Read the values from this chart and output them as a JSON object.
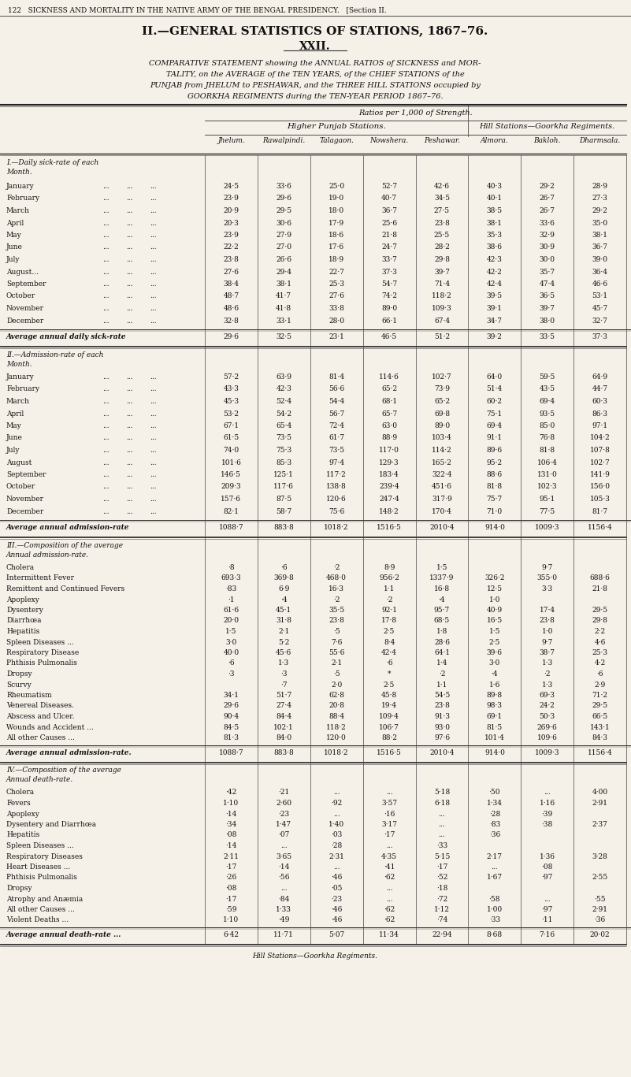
{
  "bg_color": "#f5f0e8",
  "header_line": "122   SICKNESS AND MORTALITY IN THE NATIVE ARMY OF THE BENGAL PRESIDENCY.   [Section II.",
  "title1": "II.—GENERAL STATISTICS OF STATIONS, 1867–76.",
  "title2": "XXII.",
  "subtitle_lines": [
    "COMPARATIVE STATEMENT showing the ANNUAL RATIOS of SICKNESS and MOR-",
    "TALITY, on the AVERAGE of the TEN YEARS, of the CHIEF STATIONS of the",
    "PUNJAB from JHELUM to PESHAWAR, and the THREE HILL STATIONS occupied by",
    "GOORKHA REGIMENTS during the TEN-YEAR PERIOD 1867–76."
  ],
  "ratios_label": "Ratios per 1,000 of Strength.",
  "group1_label": "Higher Punjab Stations.",
  "group2_label": "Hill Stations—Goorkha Regiments.",
  "columns": [
    "Jhelum.",
    "Rawalpindi.",
    "Talagaon.",
    "Nowshera.",
    "Peshawar.",
    "Almora.",
    "Bakloh.",
    "Dharmsala."
  ],
  "section1_title_lines": [
    "I.—Daily sick-rate of each",
    "Month."
  ],
  "section1_rows": [
    [
      "January",
      "24·5",
      "33·6",
      "25·0",
      "52·7",
      "42·6",
      "40·3",
      "29·2",
      "28·9"
    ],
    [
      "February",
      "23·9",
      "29·6",
      "19·0",
      "40·7",
      "34·5",
      "40·1",
      "26·7",
      "27·3"
    ],
    [
      "March",
      "20·9",
      "29·5",
      "18·0",
      "36·7",
      "27·5",
      "38·5",
      "26·7",
      "29·2"
    ],
    [
      "April",
      "20·3",
      "30·6",
      "17·9",
      "25·6",
      "23·8",
      "38·1",
      "33·6",
      "35·0"
    ],
    [
      "May",
      "23·9",
      "27·9",
      "18·6",
      "21·8",
      "25·5",
      "35·3",
      "32·9",
      "38·1"
    ],
    [
      "June",
      "22·2",
      "27·0",
      "17·6",
      "24·7",
      "28·2",
      "38·6",
      "30·9",
      "36·7"
    ],
    [
      "July",
      "23·8",
      "26·6",
      "18·9",
      "33·7",
      "29·8",
      "42·3",
      "30·0",
      "39·0"
    ],
    [
      "August...",
      "27·6",
      "29·4",
      "22·7",
      "37·3",
      "39·7",
      "42·2",
      "35·7",
      "36·4"
    ],
    [
      "September",
      "38·4",
      "38·1",
      "25·3",
      "54·7",
      "71·4",
      "42·4",
      "47·4",
      "46·6"
    ],
    [
      "October",
      "48·7",
      "41·7",
      "27·6",
      "74·2",
      "118·2",
      "39·5",
      "36·5",
      "53·1"
    ],
    [
      "November",
      "48·6",
      "41·8",
      "33·8",
      "89·0",
      "109·3",
      "39·1",
      "39·7",
      "45·7"
    ],
    [
      "December",
      "32·8",
      "33·1",
      "28·0",
      "66·1",
      "67·4",
      "34·7",
      "38·0",
      "32·7"
    ]
  ],
  "section1_avg": [
    "Average annual daily sick-rate",
    "29·6",
    "32·5",
    "23·1",
    "46·5",
    "51·2",
    "39·2",
    "33·5",
    "37·3"
  ],
  "section2_title_lines": [
    "II.—Admission-rate of each",
    "Month."
  ],
  "section2_rows": [
    [
      "January",
      "57·2",
      "63·9",
      "81·4",
      "114·6",
      "102·7",
      "64·0",
      "59·5",
      "64·9"
    ],
    [
      "February",
      "43·3",
      "42·3",
      "56·6",
      "65·2",
      "73·9",
      "51·4",
      "43·5",
      "44·7"
    ],
    [
      "March",
      "45·3",
      "52·4",
      "54·4",
      "68·1",
      "65·2",
      "60·2",
      "69·4",
      "60·3"
    ],
    [
      "April",
      "53·2",
      "54·2",
      "56·7",
      "65·7",
      "69·8",
      "75·1",
      "93·5",
      "86·3"
    ],
    [
      "May",
      "67·1",
      "65·4",
      "72·4",
      "63·0",
      "89·0",
      "69·4",
      "85·0",
      "97·1"
    ],
    [
      "June",
      "61·5",
      "73·5",
      "61·7",
      "88·9",
      "103·4",
      "91·1",
      "76·8",
      "104·2"
    ],
    [
      "July",
      "74·0",
      "75·3",
      "73·5",
      "117·0",
      "114·2",
      "89·6",
      "81·8",
      "107·8"
    ],
    [
      "August",
      "101·6",
      "85·3",
      "97·4",
      "129·3",
      "165·2",
      "95·2",
      "106·4",
      "102·7"
    ],
    [
      "September",
      "146·5",
      "125·1",
      "117·2",
      "183·4",
      "322·4",
      "88·6",
      "131·0",
      "141·9"
    ],
    [
      "October",
      "209·3",
      "117·6",
      "138·8",
      "239·4",
      "451·6",
      "81·8",
      "102·3",
      "156·0"
    ],
    [
      "November",
      "157·6",
      "87·5",
      "120·6",
      "247·4",
      "317·9",
      "75·7",
      "95·1",
      "105·3"
    ],
    [
      "December",
      "82·1",
      "58·7",
      "75·6",
      "148·2",
      "170·4",
      "71·0",
      "77·5",
      "81·7"
    ]
  ],
  "section2_avg": [
    "Average annual admission-rate",
    "1088·7",
    "883·8",
    "1018·2",
    "1516·5",
    "2010·4",
    "914·0",
    "1009·3",
    "1156·4"
  ],
  "section3_title_lines": [
    "III.—Composition of the average",
    "Annual admission-rate."
  ],
  "section3_rows": [
    [
      "Cholera",
      "·8",
      "·6",
      "·2",
      "8·9",
      "1·5",
      "",
      "9·7",
      ""
    ],
    [
      "Intermittent Fever",
      "693·3",
      "369·8",
      "468·0",
      "956·2",
      "1337·9",
      "326·2",
      "355·0",
      "688·6"
    ],
    [
      "Remittent and Continued Fevers",
      "·83",
      "6·9",
      "16·3",
      "1·1",
      "16·8",
      "12·5",
      "3·3",
      "21·8"
    ],
    [
      "Apoplexy",
      "·1",
      "·4",
      "·2",
      "·2",
      "·4",
      "1·0",
      "",
      ""
    ],
    [
      "Dysentery",
      "61·6",
      "45·1",
      "35·5",
      "92·1",
      "95·7",
      "40·9",
      "17·4",
      "29·5"
    ],
    [
      "Diarrhœa",
      "20·0",
      "31·8",
      "23·8",
      "17·8",
      "68·5",
      "16·5",
      "23·8",
      "29·8"
    ],
    [
      "Hepatitis",
      "1·5",
      "2·1",
      "·5",
      "2·5",
      "1·8",
      "1·5",
      "1·0",
      "2·2"
    ],
    [
      "Spleen Diseases ...",
      "3·0",
      "5·2",
      "7·6",
      "8·4",
      "28·6",
      "2·5",
      "9·7",
      "4·6"
    ],
    [
      "Respiratory Disease",
      "40·0",
      "45·6",
      "55·6",
      "42·4",
      "64·1",
      "39·6",
      "38·7",
      "25·3"
    ],
    [
      "Phthisis Pulmonalis",
      "·6",
      "1·3",
      "2·1",
      "·6",
      "1·4",
      "3·0",
      "1·3",
      "4·2"
    ],
    [
      "Dropsy",
      "·3",
      "·3",
      "·5",
      "*",
      "·2",
      "·4",
      "·2",
      "·6"
    ],
    [
      "Scurvy",
      "",
      "·7",
      "2·0",
      "2·5",
      "1·1",
      "1·6",
      "1·3",
      "2·9"
    ],
    [
      "Rheumatism",
      "34·1",
      "51·7",
      "62·8",
      "45·8",
      "54·5",
      "89·8",
      "69·3",
      "71·2"
    ],
    [
      "Venereal Diseases.",
      "29·6",
      "27·4",
      "20·8",
      "19·4",
      "23·8",
      "98·3",
      "24·2",
      "29·5"
    ],
    [
      "Abscess and Ulcer.",
      "90·4",
      "84·4",
      "88·4",
      "109·4",
      "91·3",
      "69·1",
      "50·3",
      "66·5"
    ],
    [
      "Wounds and Accident ...",
      "84·5",
      "102·1",
      "118·2",
      "106·7",
      "93·0",
      "81·5",
      "269·6",
      "143·1"
    ],
    [
      "All other Causes ...",
      "81·3",
      "84·0",
      "120·0",
      "88·2",
      "97·6",
      "101·4",
      "109·6",
      "84·3"
    ]
  ],
  "section3_avg": [
    "Average annual admission-rate.",
    "1088·7",
    "883·8",
    "1018·2",
    "1516·5",
    "2010·4",
    "914·0",
    "1009·3",
    "1156·4"
  ],
  "section4_title_lines": [
    "IV.—Composition of the average",
    "Annual death-rate."
  ],
  "section4_rows": [
    [
      "Cholera",
      "·42",
      "·21",
      "...",
      "...",
      "5·18",
      "·50",
      "...",
      "4·00"
    ],
    [
      "Fevers",
      "1·10",
      "2·60",
      "·92",
      "3·57",
      "6·18",
      "1·34",
      "1·16",
      "2·91"
    ],
    [
      "Apoplexy",
      "·14",
      "·23",
      "...",
      "·16",
      "...",
      "·28",
      "·39",
      ""
    ],
    [
      "Dysentery and Diarrhœa",
      "·34",
      "1·47",
      "1·40",
      "3·17",
      "...",
      "·83",
      "·38",
      "2·37"
    ],
    [
      "Hepatitis",
      "·08",
      "·07",
      "·03",
      "·17",
      "...",
      "·36",
      "",
      ""
    ],
    [
      "Spleen Diseases ...",
      "·14",
      "...",
      "·28",
      "...",
      "·33",
      "",
      "",
      ""
    ],
    [
      "Respiratory Diseases",
      "2·11",
      "3·65",
      "2·31",
      "4·35",
      "5·15",
      "2·17",
      "1·36",
      "3·28"
    ],
    [
      "Heart Diseases ...",
      "·17",
      "·14",
      "...",
      "·41",
      "·17",
      "...",
      "·08",
      ""
    ],
    [
      "Phthisis Pulmonalis",
      "·26",
      "·56",
      "·46",
      "·62",
      "·52",
      "1·67",
      "·97",
      "2·55"
    ],
    [
      "Dropsy",
      "·08",
      "...",
      "·05",
      "...",
      "·18",
      "",
      "",
      ""
    ],
    [
      "Atrophy and Anæmia",
      "·17",
      "·84",
      "·23",
      "...",
      "·72",
      "·58",
      "...",
      "·55"
    ],
    [
      "All other Causes ...",
      "·59",
      "1·33",
      "·46",
      "·62",
      "1·12",
      "1·00",
      "·97",
      "2·91"
    ],
    [
      "Violent Deaths ...",
      "1·10",
      "·49",
      "·46",
      "·62",
      "·74",
      "·33",
      "·11",
      "·36"
    ]
  ],
  "section4_avg": [
    "Average annual death-rate ...",
    "6·42",
    "11·71",
    "5·07",
    "11·34",
    "22·94",
    "8·68",
    "7·16",
    "20·02"
  ],
  "footer": "Hill Stations—Goorkha Regiments."
}
